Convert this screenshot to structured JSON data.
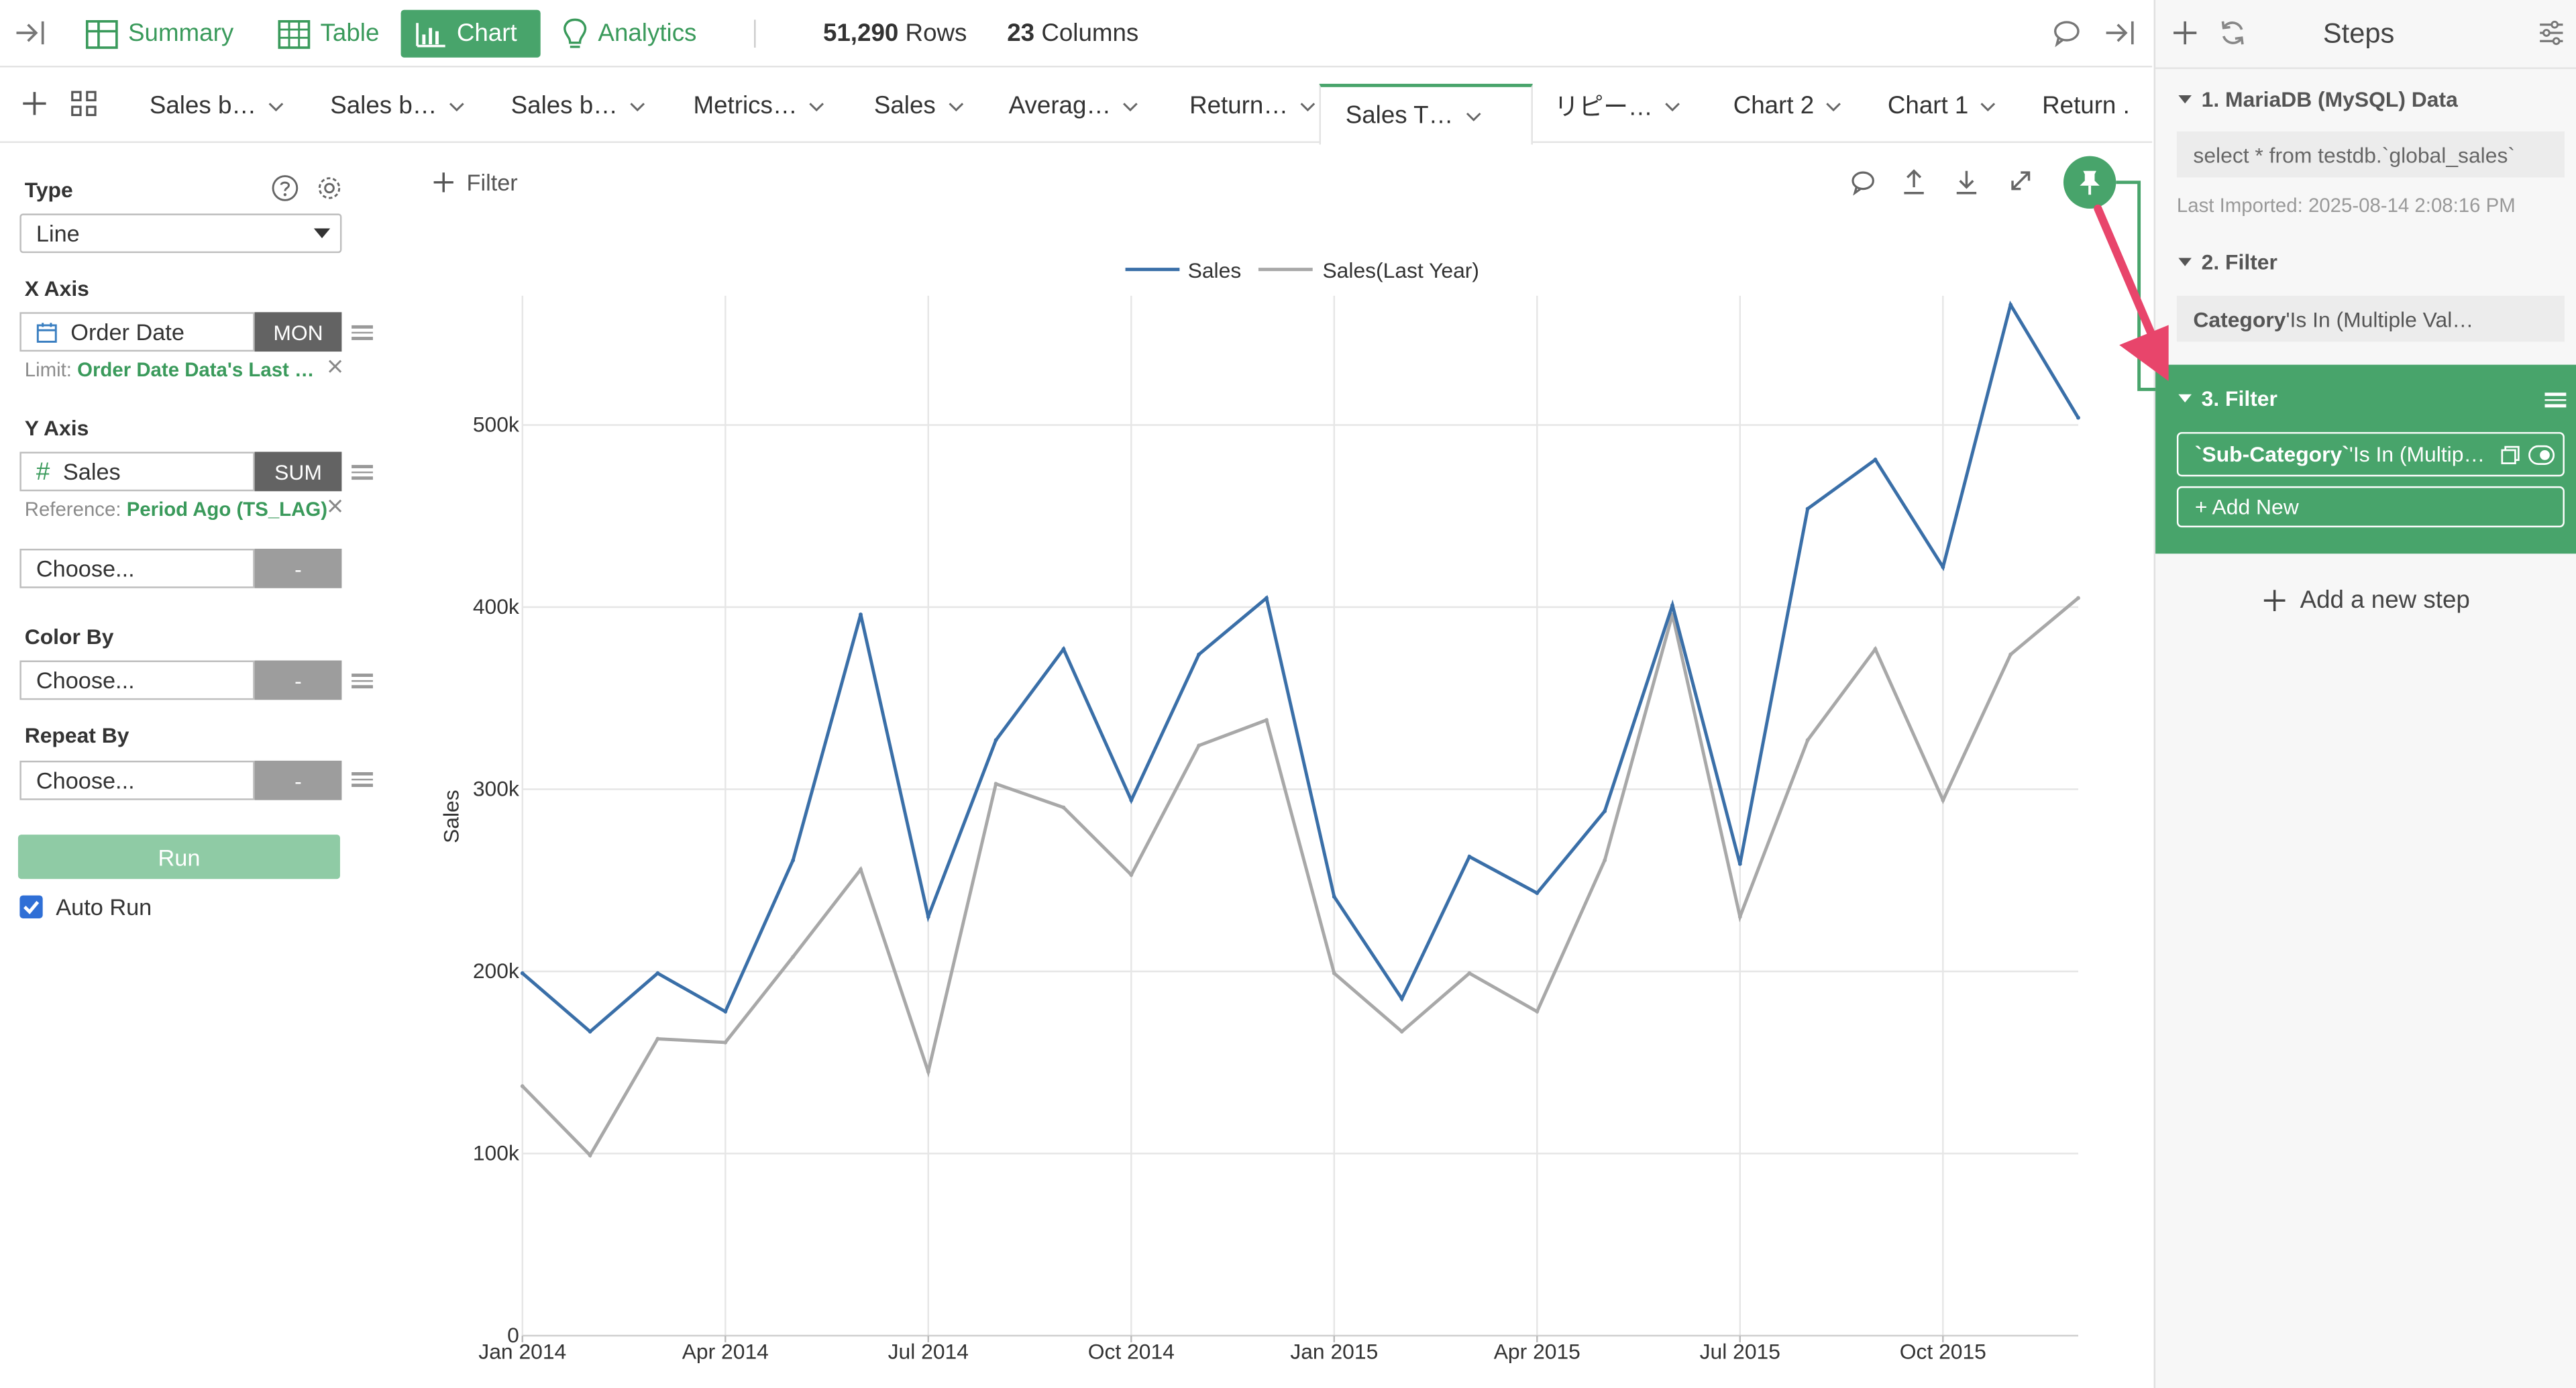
{
  "topbar": {
    "nav": [
      {
        "label": "Summary",
        "icon": "summary-grid-icon"
      },
      {
        "label": "Table",
        "icon": "table-icon"
      },
      {
        "label": "Chart",
        "icon": "bar-chart-icon",
        "active": true
      },
      {
        "label": "Analytics",
        "icon": "lightbulb-icon"
      }
    ],
    "rows_value": "51,290",
    "rows_label": "Rows",
    "columns_value": "23",
    "columns_label": "Columns"
  },
  "tabs": [
    {
      "label": "Sales b…"
    },
    {
      "label": "Sales b…"
    },
    {
      "label": "Sales b…"
    },
    {
      "label": "Metrics…"
    },
    {
      "label": "Sales"
    },
    {
      "label": "Averag…"
    },
    {
      "label": "Return…"
    },
    {
      "label": "Sales T…",
      "active": true
    },
    {
      "label": "リピー…"
    },
    {
      "label": "Chart 2"
    },
    {
      "label": "Chart 1"
    },
    {
      "label": "Return ."
    }
  ],
  "config": {
    "type_label": "Type",
    "type_value": "Line",
    "x_axis_label": "X Axis",
    "x_field": "Order Date",
    "x_agg": "MON",
    "x_limit_prefix": "Limit: ",
    "x_limit_value": "Order Date Data's Last …",
    "y_axis_label": "Y Axis",
    "y_field": "Sales",
    "y_agg": "SUM",
    "y_ref_prefix": "Reference: ",
    "y_ref_value": "Period Ago (TS_LAG)",
    "choose_placeholder": "Choose...",
    "dash": "-",
    "color_by_label": "Color By",
    "repeat_by_label": "Repeat By",
    "run_label": "Run",
    "auto_run_label": "Auto Run",
    "auto_run_checked": true
  },
  "chart_toolbar": {
    "filter_label": "Filter"
  },
  "chart_data": {
    "type": "line",
    "x": [
      "2014-01",
      "2014-02",
      "2014-03",
      "2014-04",
      "2014-05",
      "2014-06",
      "2014-07",
      "2014-08",
      "2014-09",
      "2014-10",
      "2014-11",
      "2014-12",
      "2015-01",
      "2015-02",
      "2015-03",
      "2015-04",
      "2015-05",
      "2015-06",
      "2015-07",
      "2015-08",
      "2015-09",
      "2015-10",
      "2015-11",
      "2015-12"
    ],
    "series": [
      {
        "name": "Sales",
        "color": "#3a6fa8",
        "values": [
          199000,
          167000,
          199000,
          178000,
          261000,
          396000,
          230000,
          327000,
          377000,
          294000,
          374000,
          405000,
          241000,
          185000,
          263000,
          243000,
          288000,
          401000,
          259000,
          454000,
          481000,
          422000,
          566000,
          504000
        ]
      },
      {
        "name": "Sales(Last Year)",
        "color": "#a8a8a8",
        "values": [
          137000,
          99000,
          163000,
          161000,
          208000,
          256000,
          145000,
          303000,
          290000,
          253000,
          324000,
          338000,
          199000,
          167000,
          199000,
          178000,
          261000,
          396000,
          230000,
          327000,
          377000,
          294000,
          374000,
          405000
        ]
      }
    ],
    "ylabel": "Sales",
    "xlabel": "",
    "yticks": [
      "0",
      "100k",
      "200k",
      "300k",
      "400k",
      "500k"
    ],
    "ytick_values": [
      0,
      100000,
      200000,
      300000,
      400000,
      500000
    ],
    "xticks": [
      "Jan 2014",
      "Apr 2014",
      "Jul 2014",
      "Oct 2014",
      "Jan 2015",
      "Apr 2015",
      "Jul 2015",
      "Oct 2015"
    ],
    "xtick_indices": [
      0,
      3,
      6,
      9,
      12,
      15,
      18,
      21
    ],
    "ylim": [
      0,
      580000
    ],
    "grid": true,
    "legend_position": "top-center"
  },
  "steps": {
    "title": "Steps",
    "items": [
      {
        "title": "1. MariaDB (MySQL) Data",
        "box": "select * from testdb.`global_sales`",
        "note": "Last Imported: 2025-08-14 2:08:16 PM"
      },
      {
        "title": "2. Filter",
        "box_bold": "Category",
        "box_rest": " 'Is In (Multiple Val…"
      },
      {
        "title": "3. Filter",
        "box_bold": "`Sub-Category`",
        "box_rest": " 'Is In (Multip…",
        "add_new": "+ Add New"
      }
    ],
    "add_step_label": "Add a new step"
  },
  "colors": {
    "accent": "#48a46b",
    "annotation_arrow": "#e8456b"
  }
}
